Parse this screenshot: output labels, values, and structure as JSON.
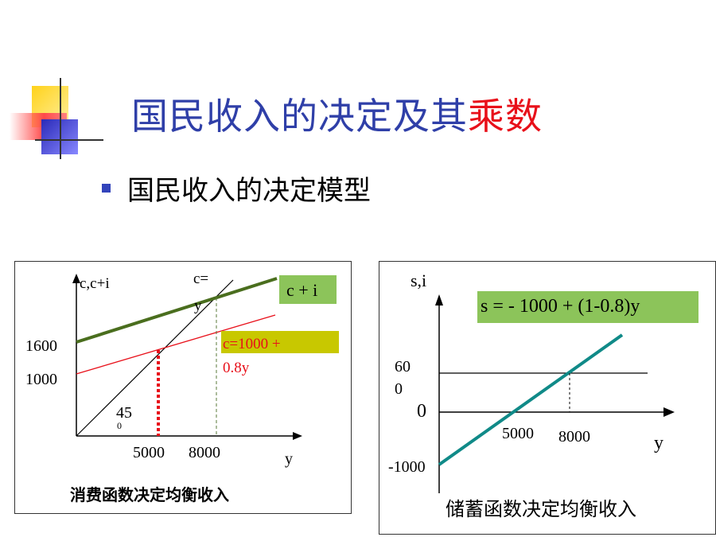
{
  "slide": {
    "title_main": "国民收入的决定及其",
    "title_highlight": "乘数",
    "bullet": "国民收入的决定模型"
  },
  "left_chart": {
    "y_axis_label": "c,c+i",
    "line_cy_label_1": "c=",
    "line_cy_label_2": "y",
    "ci_label": "c + i",
    "c_label_1": "c=1000 +",
    "c_label_2": "0.8y",
    "tick_1600": "1600",
    "tick_1000": "1000",
    "angle_label": "45",
    "angle_sup": "0",
    "x_tick_5000": "5000",
    "x_tick_8000": "8000",
    "x_axis_label": "y",
    "caption": "消费函数决定均衡收入"
  },
  "right_chart": {
    "y_axis_label": "s,i",
    "s_label": "s = - 1000 + (1-0.8)y",
    "tick_600_1": "60",
    "tick_600_2": "0",
    "zero_label": "0",
    "tick_neg1000": "-1000",
    "x_tick_5000": "5000",
    "x_tick_8000": "8000",
    "x_axis_label": "y",
    "caption": "储蓄函数决定均衡收入"
  },
  "colors": {
    "title_blue": "#2f3fa8",
    "title_red": "#e8101a",
    "ci_line": "#4a6e1e",
    "c_line": "#e8101a",
    "s_line": "#108a88",
    "label_box_green": "#8cc45a",
    "label_box_yellow": "#c8c800"
  }
}
